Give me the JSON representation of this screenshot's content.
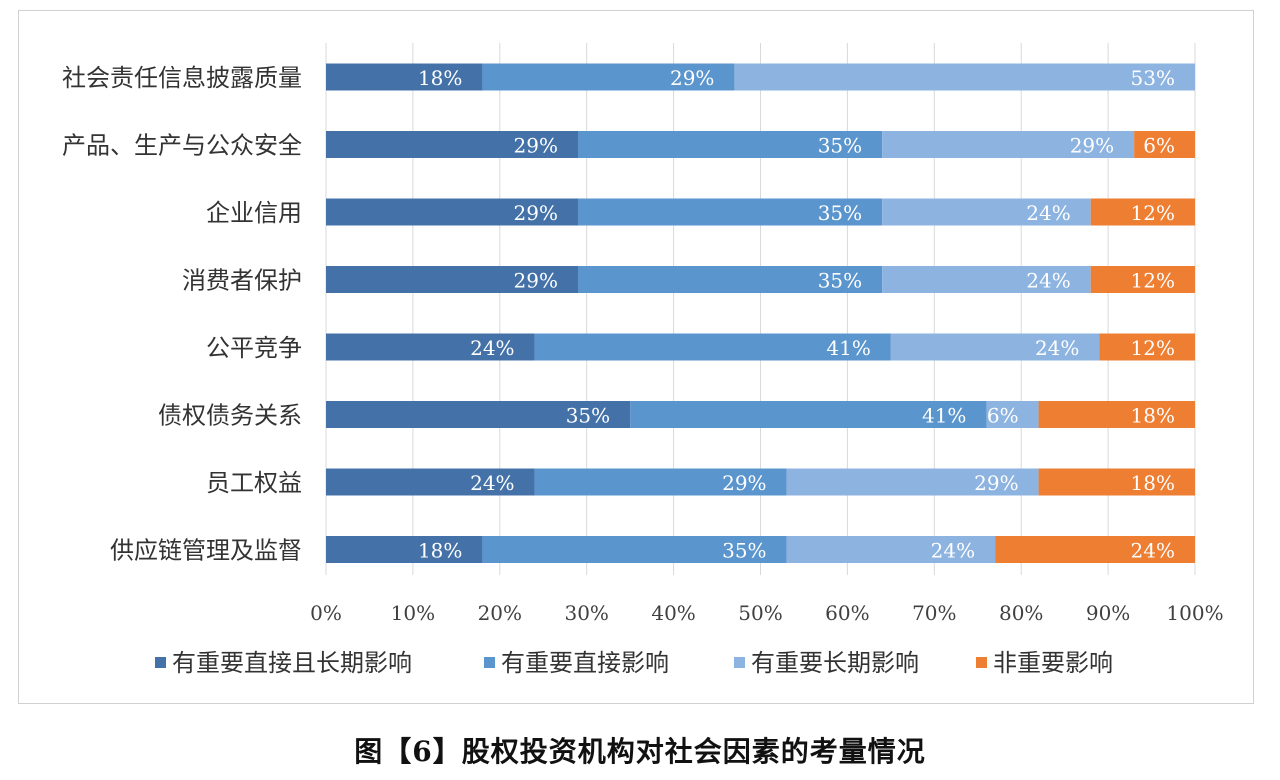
{
  "chart_data": {
    "type": "bar",
    "orientation": "horizontal",
    "stacked": true,
    "percent": true,
    "categories": [
      "社会责任信息披露质量",
      "产品、生产与公众安全",
      "企业信用",
      "消费者保护",
      "公平竞争",
      "债权债务关系",
      "员工权益",
      "供应链管理及监督"
    ],
    "series": [
      {
        "name": "有重要直接且长期影响",
        "color": "#4472a8",
        "values": [
          18,
          29,
          29,
          29,
          24,
          35,
          24,
          18
        ]
      },
      {
        "name": "有重要直接影响",
        "color": "#5b95cd",
        "values": [
          29,
          35,
          35,
          35,
          41,
          41,
          29,
          35
        ]
      },
      {
        "name": "有重要长期影响",
        "color": "#8db3e0",
        "values": [
          53,
          29,
          24,
          24,
          24,
          6,
          29,
          24
        ]
      },
      {
        "name": "非重要影响",
        "color": "#ee7e32",
        "values": [
          0,
          6,
          12,
          12,
          12,
          18,
          18,
          24
        ]
      }
    ],
    "xlim": [
      0,
      100
    ],
    "xticks": [
      "0%",
      "10%",
      "20%",
      "30%",
      "40%",
      "50%",
      "60%",
      "70%",
      "80%",
      "90%",
      "100%"
    ],
    "grid": true,
    "legend": "bottom"
  },
  "caption": "图【6】股权投资机构对社会因素的考量情况"
}
